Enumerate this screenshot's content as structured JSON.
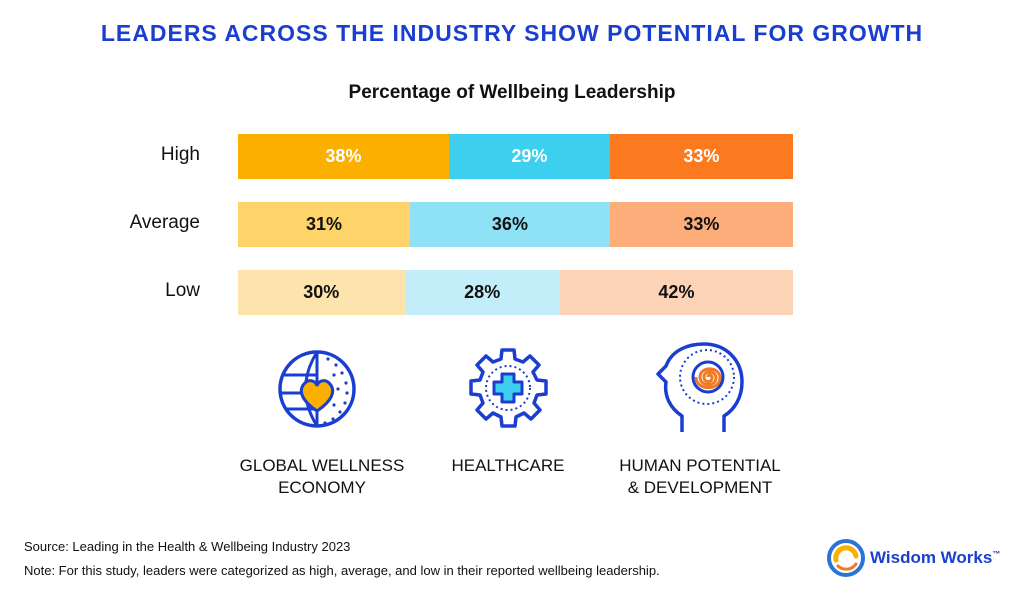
{
  "headline": "LEADERS ACROSS THE INDUSTRY SHOW POTENTIAL FOR GROWTH",
  "chart_data": {
    "type": "bar",
    "orientation": "horizontal",
    "stacked": true,
    "title": "Percentage of Wellbeing Leadership",
    "categories": [
      "High",
      "Average",
      "Low"
    ],
    "series": [
      {
        "name": "GLOBAL WELLNESS\nECONOMY",
        "values": [
          38,
          31,
          30
        ],
        "labels": [
          "38%",
          "31%",
          "30%"
        ],
        "colors": [
          "#fbb000",
          "#fdd36a",
          "#fde4ad"
        ],
        "text_colors": [
          "#ffffff",
          "#111111",
          "#111111"
        ]
      },
      {
        "name": "HEALTHCARE",
        "values": [
          29,
          36,
          28
        ],
        "labels": [
          "29%",
          "36%",
          "28%"
        ],
        "colors": [
          "#3ccfef",
          "#8fe1f5",
          "#c3eef9"
        ],
        "text_colors": [
          "#ffffff",
          "#111111",
          "#111111"
        ]
      },
      {
        "name": "HUMAN POTENTIAL\n& DEVELOPMENT",
        "values": [
          33,
          33,
          42
        ],
        "labels": [
          "33%",
          "33%",
          "42%"
        ],
        "colors": [
          "#fb7a1f",
          "#fdad7a",
          "#fdd3b8"
        ],
        "text_colors": [
          "#ffffff",
          "#111111",
          "#111111"
        ]
      }
    ],
    "grid": false,
    "legend": "icons-below"
  },
  "icons": [
    "globe-heart-icon",
    "gear-cross-icon",
    "head-spiral-icon"
  ],
  "footer": {
    "source": "Source: Leading in the Health & Wellbeing Industry 2023",
    "note": "Note: For this study, leaders were categorized as high, average, and low in their reported wellbeing leadership."
  },
  "logo": {
    "text": "Wisdom Works",
    "tm": "™"
  },
  "colors": {
    "brand_blue": "#1a3fd0",
    "icon_orange": "#fbb000",
    "spiral_orange": "#f07a24"
  }
}
